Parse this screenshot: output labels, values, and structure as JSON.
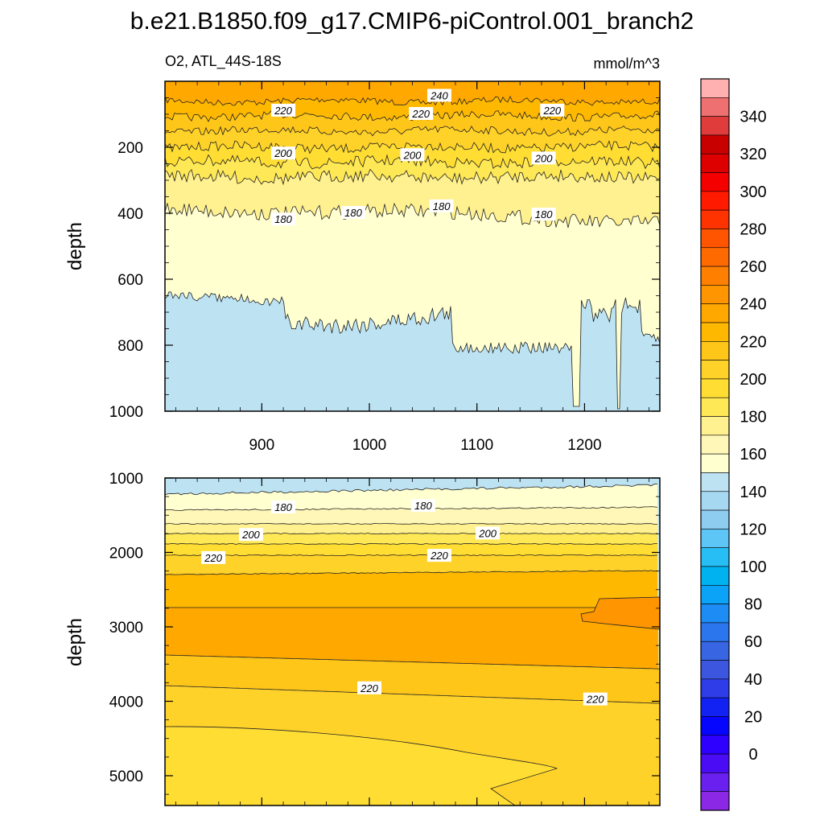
{
  "chart_data": [
    {
      "type": "contour",
      "title": "b.e21.B1850.f09_g17.CMIP6-piControl.001_branch2",
      "subtitle_left": "O2, ATL_44S-18S",
      "subtitle_right": "mmol/m^3",
      "xlabel": "",
      "ylabel": "depth",
      "xlim": [
        810,
        1270
      ],
      "ylim": [
        1000,
        0
      ],
      "xticks": [
        900,
        1000,
        1100,
        1200
      ],
      "yticks": [
        200,
        400,
        600,
        800,
        1000
      ],
      "bands": [
        {
          "range": "240-250",
          "top_depth": 0
        },
        {
          "range": "230-240",
          "top_depth": 60
        },
        {
          "range": "220-230",
          "top_depth": 105
        },
        {
          "range": "210-220",
          "top_depth": 150
        },
        {
          "range": "200-210",
          "top_depth": 200
        },
        {
          "range": "190-200",
          "top_depth": 245
        },
        {
          "range": "180-190",
          "top_depth": 290
        },
        {
          "range": "170-180",
          "top_depth": 390
        },
        {
          "range": "160-170",
          "top_depth": "620-880 (deepening with time)"
        }
      ],
      "contour_labels": [
        {
          "text": "240",
          "x": 1065,
          "depth": 45
        },
        {
          "text": "220",
          "x": 920,
          "depth": 90
        },
        {
          "text": "220",
          "x": 1048,
          "depth": 100
        },
        {
          "text": "220",
          "x": 1170,
          "depth": 90
        },
        {
          "text": "200",
          "x": 920,
          "depth": 220
        },
        {
          "text": "200",
          "x": 1040,
          "depth": 225
        },
        {
          "text": "200",
          "x": 1162,
          "depth": 235
        },
        {
          "text": "180",
          "x": 920,
          "depth": 420
        },
        {
          "text": "180",
          "x": 985,
          "depth": 400
        },
        {
          "text": "180",
          "x": 1067,
          "depth": 380
        },
        {
          "text": "180",
          "x": 1162,
          "depth": 405
        }
      ]
    },
    {
      "type": "contour",
      "xlabel": "",
      "ylabel": "depth",
      "xlim": [
        810,
        1270
      ],
      "ylim": [
        5400,
        1000
      ],
      "yticks": [
        1000,
        2000,
        3000,
        4000,
        5000
      ],
      "bands": [
        {
          "range": "160-170",
          "top_depth": 1000
        },
        {
          "range": "170-180",
          "top_depth": 1150
        },
        {
          "range": "180-190",
          "top_depth": 1400
        },
        {
          "range": "190-200",
          "top_depth": 1700
        },
        {
          "range": "200-210",
          "top_depth": 1880
        },
        {
          "range": "210-220",
          "top_depth": 2020
        },
        {
          "range": "220-230",
          "top_depth": 2080
        },
        {
          "range": "230-240",
          "top_depth": 2260
        },
        {
          "range": "240-250",
          "top_depth": "2700-2950 (x >= 1200)"
        },
        {
          "range": "220-230",
          "top_depth": 3400
        },
        {
          "range": "210-220",
          "top_depth": 3800
        },
        {
          "range": "200-210",
          "top_depth": 4300
        }
      ],
      "contour_labels": [
        {
          "text": "180",
          "x": 920,
          "depth": 1400
        },
        {
          "text": "180",
          "x": 1050,
          "depth": 1380
        },
        {
          "text": "200",
          "x": 890,
          "depth": 1770
        },
        {
          "text": "200",
          "x": 1110,
          "depth": 1750
        },
        {
          "text": "220",
          "x": 855,
          "depth": 2080
        },
        {
          "text": "220",
          "x": 1065,
          "depth": 2050
        },
        {
          "text": "220",
          "x": 1000,
          "depth": 3830
        },
        {
          "text": "220",
          "x": 1210,
          "depth": 3980
        }
      ]
    }
  ],
  "colorbar": {
    "labels": [
      "340",
      "320",
      "300",
      "280",
      "260",
      "240",
      "220",
      "200",
      "180",
      "160",
      "140",
      "120",
      "100",
      "80",
      "60",
      "40",
      "20",
      "0"
    ],
    "colors": [
      "#ffb0b0",
      "#ee7070",
      "#e03c3c",
      "#c80000",
      "#de0000",
      "#f50000",
      "#ff1a00",
      "#ff3300",
      "#ff5500",
      "#ff6a00",
      "#ff8000",
      "#ff9500",
      "#ffa800",
      "#ffb800",
      "#ffc61a",
      "#ffd22a",
      "#ffdd33",
      "#ffe855",
      "#fff090",
      "#fff7b8",
      "#ffffd0",
      "#bde3f3",
      "#a7d8f1",
      "#8ecdf0",
      "#5ec6f6",
      "#26bef5",
      "#00b2f0",
      "#0aa3f7",
      "#1e8cf5",
      "#2c76ed",
      "#3866e3",
      "#3d56e0",
      "#2f3de8",
      "#1222f2",
      "#0606ff",
      "#2d00ff",
      "#4a0cf5",
      "#6a20ee",
      "#8b28e6"
    ]
  }
}
